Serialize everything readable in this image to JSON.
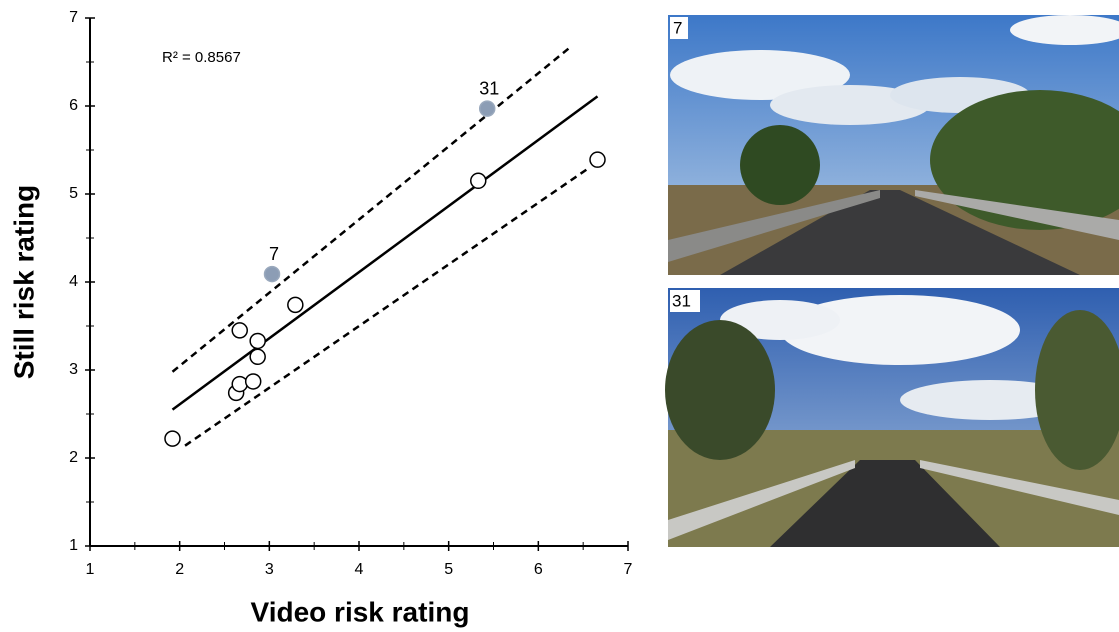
{
  "chart_data": {
    "type": "scatter",
    "xlabel": "Video risk rating",
    "ylabel": "Still risk rating",
    "annotation": "R² = 0.8567",
    "xlim": [
      1,
      7
    ],
    "ylim": [
      1,
      7
    ],
    "xticks": [
      1,
      2,
      3,
      4,
      5,
      6,
      7
    ],
    "yticks": [
      1,
      2,
      3,
      4,
      5,
      6,
      7
    ],
    "series": [
      {
        "color": "#ffffff",
        "x": [
          1.92,
          2.63,
          2.67,
          2.67,
          2.82,
          2.87,
          2.87,
          3.29,
          5.33,
          6.66
        ],
        "values": [
          2.22,
          2.74,
          2.84,
          3.45,
          2.87,
          3.15,
          3.33,
          3.74,
          5.15,
          5.39
        ]
      },
      {
        "color": "#8c9db5",
        "x": [
          3.03,
          5.43
        ],
        "values": [
          4.09,
          5.97
        ],
        "labels": [
          "7",
          "31"
        ]
      }
    ],
    "fit": {
      "x": [
        1.92,
        6.66
      ],
      "y": [
        2.55,
        6.11
      ]
    },
    "bands": [
      {
        "x": [
          1.92,
          6.37
        ],
        "y": [
          2.98,
          6.68
        ]
      },
      {
        "x": [
          2.06,
          6.57
        ],
        "y": [
          2.14,
          5.3
        ]
      }
    ]
  },
  "images": [
    {
      "label": "7"
    },
    {
      "label": "31"
    }
  ]
}
